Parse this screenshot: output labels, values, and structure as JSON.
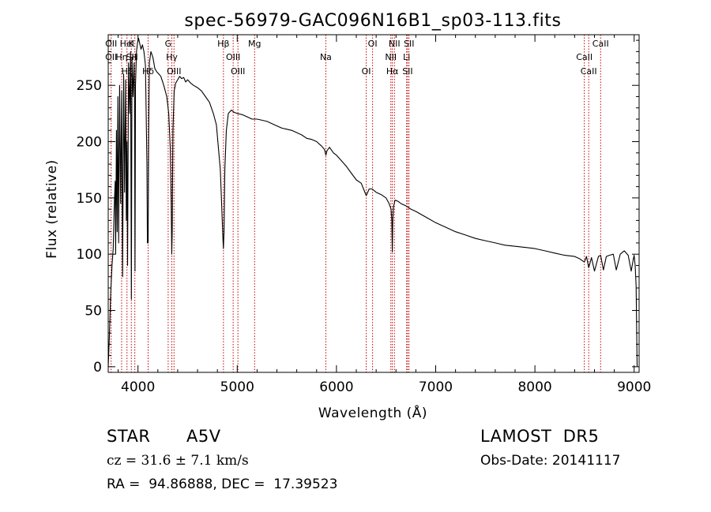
{
  "chart_data": {
    "type": "line",
    "title": "spec-56979-GAC096N16B1_sp03-113.fits",
    "xlabel": "Wavelength (Å)",
    "ylabel": "Flux (relative)",
    "xlim": [
      3700,
      9050
    ],
    "ylim": [
      -5,
      295
    ],
    "xticks": [
      4000,
      5000,
      6000,
      7000,
      8000,
      9000
    ],
    "yticks": [
      0,
      50,
      100,
      150,
      200,
      250
    ],
    "grid": false,
    "series": [
      {
        "x": [
          3700,
          3712,
          3725,
          3738,
          3750,
          3760,
          3770,
          3775,
          3783,
          3790,
          3797,
          3805,
          3815,
          3825,
          3835,
          3845,
          3855,
          3865,
          3875,
          3882,
          3889,
          3895,
          3905,
          3915,
          3925,
          3933,
          3940,
          3950,
          3960,
          3965,
          3970,
          3975,
          3985,
          3995,
          4005,
          4015,
          4030,
          4045,
          4060,
          4075,
          4090,
          4095,
          4102,
          4108,
          4115,
          4130,
          4150,
          4170,
          4190,
          4210,
          4230,
          4260,
          4290,
          4310,
          4325,
          4335,
          4340,
          4345,
          4352,
          4365,
          4380,
          4400,
          4420,
          4440,
          4460,
          4480,
          4500,
          4530,
          4560,
          4600,
          4640,
          4680,
          4720,
          4760,
          4790,
          4810,
          4830,
          4845,
          4855,
          4861,
          4867,
          4875,
          4890,
          4910,
          4940,
          4970,
          5000,
          5050,
          5100,
          5150,
          5200,
          5250,
          5300,
          5350,
          5400,
          5450,
          5500,
          5550,
          5600,
          5650,
          5700,
          5750,
          5800,
          5850,
          5880,
          5893,
          5905,
          5930,
          5970,
          6000,
          6050,
          6100,
          6150,
          6200,
          6250,
          6300,
          6330,
          6360,
          6400,
          6450,
          6500,
          6530,
          6550,
          6558,
          6563,
          6568,
          6575,
          6590,
          6620,
          6650,
          6700,
          6750,
          6800,
          6900,
          7000,
          7100,
          7200,
          7300,
          7400,
          7500,
          7600,
          7700,
          7800,
          7900,
          8000,
          8100,
          8200,
          8300,
          8400,
          8450,
          8498,
          8520,
          8542,
          8570,
          8600,
          8640,
          8662,
          8690,
          8720,
          8750,
          8790,
          8820,
          8860,
          8900,
          8940,
          8970,
          8990,
          9000,
          9010,
          9020,
          9030
        ],
        "y": [
          0,
          28,
          65,
          90,
          105,
          140,
          165,
          100,
          210,
          120,
          240,
          110,
          250,
          145,
          245,
          80,
          260,
          155,
          255,
          130,
          200,
          90,
          270,
          225,
          280,
          60,
          275,
          240,
          270,
          240,
          85,
          250,
          280,
          288,
          292,
          288,
          282,
          286,
          280,
          268,
          180,
          110,
          110,
          210,
          270,
          280,
          275,
          265,
          262,
          260,
          258,
          250,
          240,
          225,
          195,
          140,
          100,
          120,
          210,
          245,
          252,
          255,
          258,
          256,
          257,
          253,
          255,
          252,
          250,
          248,
          245,
          240,
          235,
          225,
          215,
          195,
          175,
          140,
          115,
          105,
          120,
          175,
          210,
          225,
          228,
          226,
          225,
          224,
          222,
          220,
          220,
          219,
          218,
          216,
          214,
          212,
          211,
          210,
          208,
          206,
          203,
          202,
          200,
          196,
          193,
          188,
          192,
          195,
          190,
          188,
          183,
          178,
          172,
          166,
          163,
          152,
          158,
          158,
          155,
          153,
          150,
          145,
          140,
          130,
          102,
          130,
          142,
          148,
          147,
          145,
          143,
          140,
          138,
          133,
          128,
          124,
          120,
          117,
          114,
          112,
          110,
          108,
          107,
          106,
          105,
          103,
          101,
          99,
          98,
          96,
          93,
          98,
          88,
          97,
          85,
          98,
          99,
          86,
          98,
          99,
          100,
          86,
          100,
          103,
          99,
          85,
          95,
          99,
          90,
          72,
          0
        ]
      }
    ],
    "line_markers": [
      {
        "wl": 3729,
        "labels": [
          "OII",
          "OII"
        ]
      },
      {
        "wl": 3835,
        "labels": [
          "Hη"
        ]
      },
      {
        "wl": 3889,
        "labels": [
          "Hζ",
          "HeI"
        ]
      },
      {
        "wl": 3933,
        "labels": [
          "K",
          "SII"
        ]
      },
      {
        "wl": 3968,
        "labels": [
          "H"
        ]
      },
      {
        "wl": 4102,
        "labels": [
          "Hδ"
        ]
      },
      {
        "wl": 4304,
        "labels": [
          "G"
        ]
      },
      {
        "wl": 4341,
        "labels": [
          "Hγ"
        ]
      },
      {
        "wl": 4363,
        "labels": [
          "OIII"
        ]
      },
      {
        "wl": 4861,
        "labels": [
          "Hβ"
        ]
      },
      {
        "wl": 4959,
        "labels": [
          "OIII"
        ]
      },
      {
        "wl": 5007,
        "labels": [
          "OIII"
        ]
      },
      {
        "wl": 5175,
        "labels": [
          "Mg"
        ]
      },
      {
        "wl": 5893,
        "labels": [
          "Na"
        ]
      },
      {
        "wl": 6300,
        "labels": [
          "OI"
        ]
      },
      {
        "wl": 6364,
        "labels": [
          "OI"
        ]
      },
      {
        "wl": 6548,
        "labels": [
          "NII"
        ]
      },
      {
        "wl": 6563,
        "labels": [
          "Hα"
        ]
      },
      {
        "wl": 6584,
        "labels": [
          "NII"
        ]
      },
      {
        "wl": 6707,
        "labels": [
          "Li"
        ]
      },
      {
        "wl": 6717,
        "labels": [
          "SII"
        ]
      },
      {
        "wl": 6731,
        "labels": [
          "SII"
        ]
      },
      {
        "wl": 8498,
        "labels": [
          "CaII"
        ]
      },
      {
        "wl": 8542,
        "labels": [
          "CaII"
        ]
      },
      {
        "wl": 8662,
        "labels": [
          "CaII"
        ]
      }
    ],
    "colors": {
      "spectrum": "#000000",
      "marker": "#c00000",
      "axis": "#000000"
    }
  },
  "info": {
    "object_class": "STAR",
    "subclass": "A5V",
    "survey": "LAMOST  DR5",
    "cz": "cz = 31.6 ± 7.1 km/s",
    "obs_date": "Obs-Date: 20141117",
    "radec": "RA =  94.86888, DEC =  17.39523"
  }
}
